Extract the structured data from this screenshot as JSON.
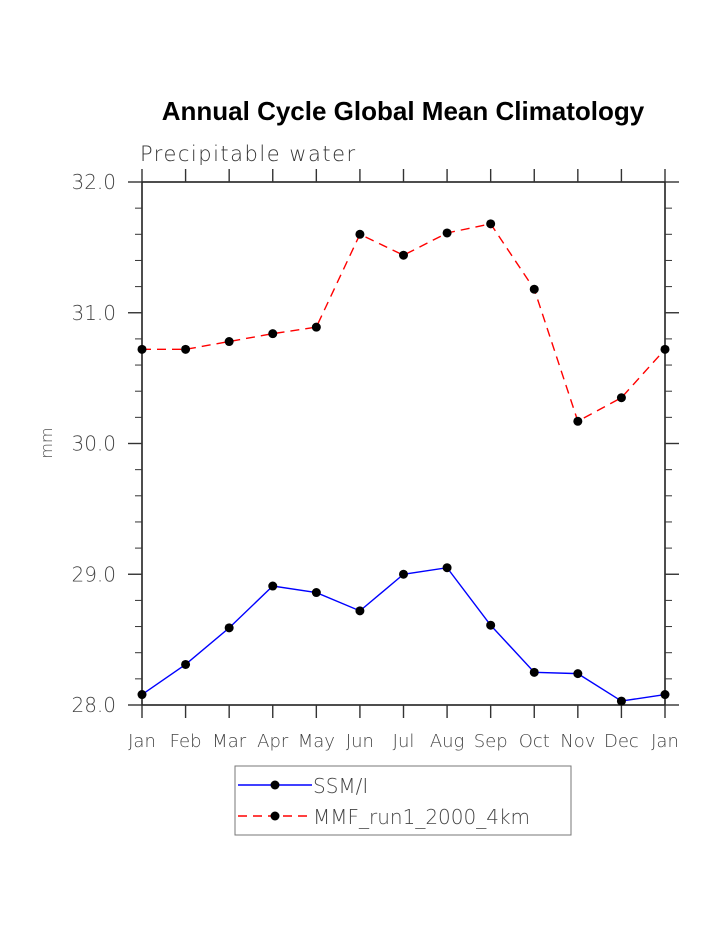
{
  "chart_data": {
    "type": "line",
    "title": "Annual Cycle Global Mean Climatology",
    "subtitle": "Precipitable water",
    "xlabel": "",
    "ylabel": "mm",
    "categories": [
      "Jan",
      "Feb",
      "Mar",
      "Apr",
      "May",
      "Jun",
      "Jul",
      "Aug",
      "Sep",
      "Oct",
      "Nov",
      "Dec",
      "Jan"
    ],
    "ylim": [
      28.0,
      32.0
    ],
    "yticks": [
      "28.0",
      "29.0",
      "30.0",
      "31.0",
      "32.0"
    ],
    "yminor_step": 0.2,
    "grid": false,
    "legend_position": "bottom-center",
    "series": [
      {
        "name": "SSM/I",
        "color": "#0000ff",
        "line_style": "solid",
        "marker": "filled-circle",
        "values": [
          28.08,
          28.31,
          28.59,
          28.91,
          28.86,
          28.72,
          29.0,
          29.05,
          28.61,
          28.25,
          28.24,
          28.03,
          28.08
        ]
      },
      {
        "name": "MMF_run1_2000_4km",
        "color": "#ff0000",
        "line_style": "dashed",
        "marker": "filled-circle",
        "values": [
          30.72,
          30.72,
          30.78,
          30.84,
          30.89,
          31.6,
          31.44,
          31.61,
          31.68,
          31.18,
          30.17,
          30.35,
          30.72
        ]
      }
    ]
  }
}
